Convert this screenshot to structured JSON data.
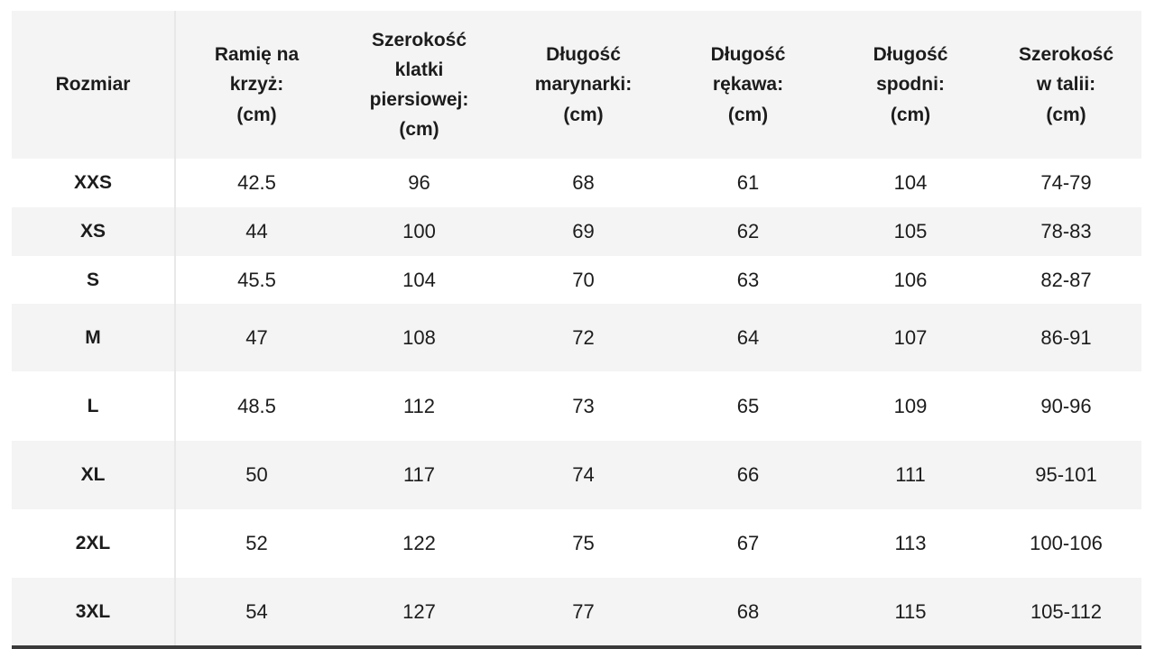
{
  "table": {
    "columns": [
      "Rozmiar",
      "Ramię na\nkrzyż:\n(cm)",
      "Szerokość\nklatki\npiersiowej:\n(cm)",
      "Długość\nmarynarki:\n(cm)",
      "Długość\nrękawa:\n(cm)",
      "Długość\nspodni:\n(cm)",
      "Szerokość\nw talii:\n(cm)"
    ],
    "rows": [
      {
        "size": "XXS",
        "values": [
          "42.5",
          "96",
          "68",
          "61",
          "104",
          "74-79"
        ]
      },
      {
        "size": "XS",
        "values": [
          "44",
          "100",
          "69",
          "62",
          "105",
          "78-83"
        ]
      },
      {
        "size": "S",
        "values": [
          "45.5",
          "104",
          "70",
          "63",
          "106",
          "82-87"
        ]
      },
      {
        "size": "M",
        "values": [
          "47",
          "108",
          "72",
          "64",
          "107",
          "86-91"
        ]
      },
      {
        "size": "L",
        "values": [
          "48.5",
          "112",
          "73",
          "65",
          "109",
          "90-96"
        ]
      },
      {
        "size": "XL",
        "values": [
          "50",
          "117",
          "74",
          "66",
          "111",
          "95-101"
        ]
      },
      {
        "size": "2XL",
        "values": [
          "52",
          "122",
          "75",
          "67",
          "113",
          "100-106"
        ]
      },
      {
        "size": "3XL",
        "values": [
          "54",
          "127",
          "77",
          "68",
          "115",
          "105-112"
        ]
      }
    ]
  },
  "colors": {
    "stripe": "#f4f4f4",
    "text": "#1c1c1c",
    "separator": "#e8e8e8",
    "bottom_bar": "#3a3a3a"
  }
}
